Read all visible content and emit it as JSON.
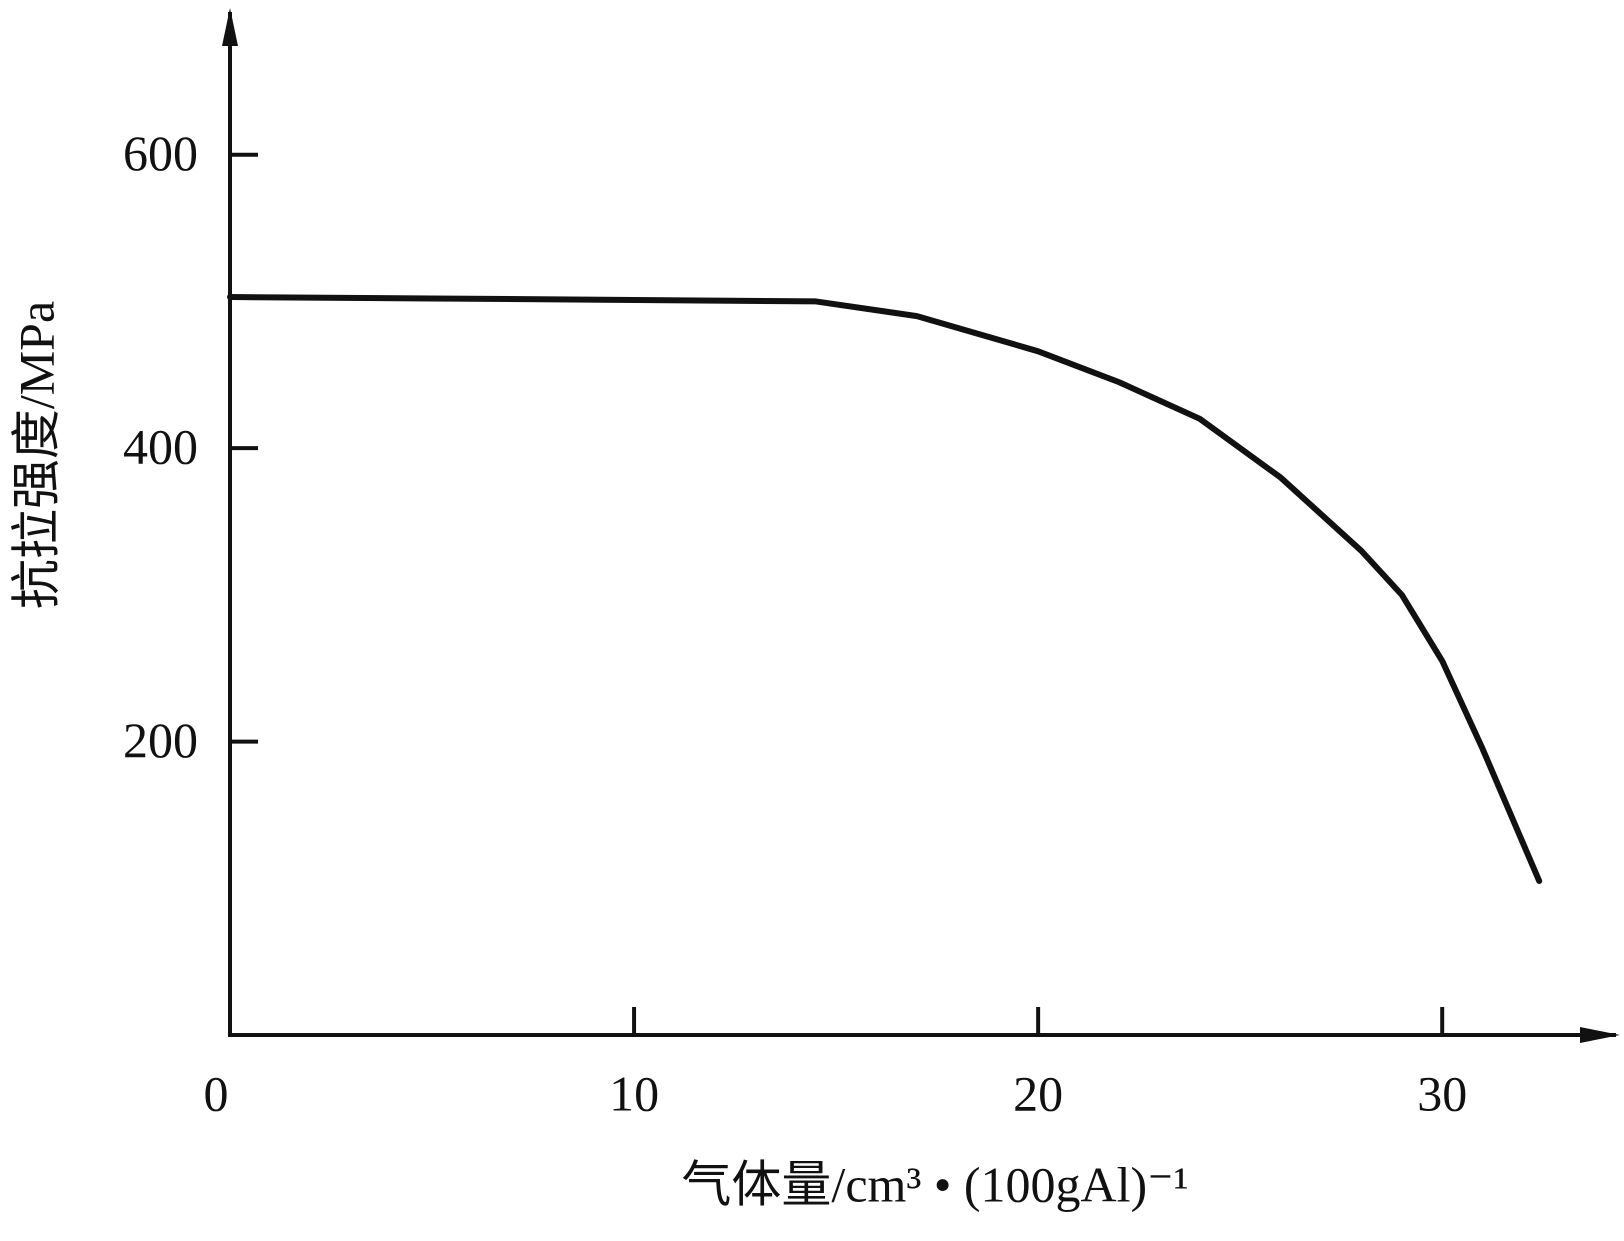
{
  "chart_data": {
    "type": "line",
    "x_label": "气体量/cm³ • (100gAl)⁻¹",
    "y_label": "抗拉强度/MPa",
    "x": [
      0,
      5,
      10,
      14.5,
      17,
      20,
      22,
      24,
      26,
      28,
      29,
      30,
      31,
      32.4
    ],
    "series": [
      {
        "color": "#111111",
        "values": [
          503,
          502,
          501,
          500,
          490,
          466,
          445,
          420,
          380,
          330,
          300,
          255,
          195,
          105
        ]
      }
    ],
    "xlim": [
      0,
      34.4
    ],
    "ylim": [
      0,
      700
    ],
    "xticks": [
      0,
      10,
      20,
      30
    ],
    "yticks": [
      200,
      400,
      600
    ]
  }
}
